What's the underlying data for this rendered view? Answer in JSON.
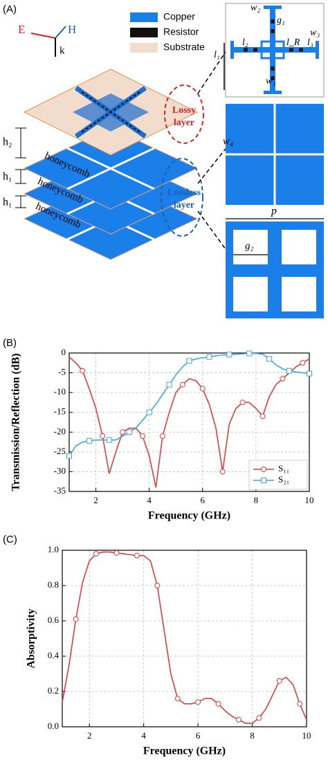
{
  "panel_labels": [
    "(A)",
    "(B)",
    "(C)"
  ],
  "diagram": {
    "legend": [
      "Copper",
      "Resistor",
      "Substrate"
    ],
    "field": {
      "e": "E",
      "h": "H",
      "k": "k"
    },
    "heights": [
      "h₂",
      "h₁",
      "h₁"
    ],
    "honeycomb": [
      "honeycomb",
      "honeycomb",
      "honeycomb"
    ],
    "lossy": [
      "Lossy",
      "layer"
    ],
    "lossless": [
      "Lossless",
      "layer"
    ],
    "unit_cell": {
      "w2": "w₂",
      "g1": "g₁",
      "w3": "w₃",
      "l1": "l₁",
      "l2": "l₂",
      "lR": "l_R",
      "l3": "l₃",
      "w1": "w₁"
    },
    "lossless_cell": {
      "w4": "w₄"
    },
    "honeycomb_cell": {
      "p": "p",
      "g2": "g₂"
    }
  },
  "chart_data": [
    {
      "type": "line",
      "xlabel": "Frequency (GHz)",
      "ylabel": "Transmission/Reflection (dB)",
      "x": [
        1,
        1.25,
        1.5,
        1.75,
        2,
        2.25,
        2.5,
        2.75,
        3,
        3.25,
        3.5,
        3.75,
        4,
        4.25,
        4.5,
        4.75,
        5,
        5.25,
        5.5,
        5.75,
        6,
        6.25,
        6.5,
        6.75,
        7,
        7.25,
        7.5,
        7.75,
        8,
        8.25,
        8.5,
        8.75,
        9,
        9.25,
        9.5,
        9.75,
        10
      ],
      "series": [
        {
          "name": "S₁₁",
          "color": "#e33b3b",
          "marker": "circle",
          "values": [
            -1,
            -2.5,
            -4.5,
            -9,
            -14,
            -21,
            -30.5,
            -25,
            -20,
            -19,
            -19,
            -21,
            -26,
            -34,
            -21,
            -15,
            -10,
            -8,
            -6.5,
            -7,
            -9,
            -13,
            -19,
            -30,
            -18,
            -14,
            -12.5,
            -12.5,
            -14,
            -16,
            -11,
            -8,
            -6.5,
            -5,
            -3.5,
            -2.5,
            -1.5
          ]
        },
        {
          "name": "S₂₁",
          "color": "#3aa8e0",
          "marker": "square",
          "values": [
            -26,
            -23.5,
            -22.5,
            -22.2,
            -22,
            -22,
            -22,
            -22,
            -21,
            -20,
            -19,
            -17,
            -15,
            -13,
            -10.5,
            -8,
            -5.5,
            -3.5,
            -2,
            -1.5,
            -1.2,
            -1,
            -0.7,
            -0.5,
            -0.4,
            -0.3,
            -0.2,
            -0.1,
            -0.1,
            -0.3,
            -1.5,
            -3,
            -4,
            -4.5,
            -4.8,
            -5,
            -5.2
          ]
        }
      ],
      "xlim": [
        1,
        10
      ],
      "xticks": [
        2,
        4,
        6,
        8,
        10
      ],
      "ylim": [
        -35,
        0
      ],
      "yticks": [
        -35,
        -30,
        -25,
        -20,
        -15,
        -10,
        -5,
        0
      ],
      "grid": true,
      "legend": "lower right"
    },
    {
      "type": "line",
      "xlabel": "Frequency (GHz)",
      "ylabel": "Absorptivity",
      "x": [
        1,
        1.25,
        1.5,
        1.75,
        2,
        2.25,
        2.5,
        2.75,
        3,
        3.25,
        3.5,
        3.75,
        4,
        4.25,
        4.5,
        4.75,
        5,
        5.25,
        5.5,
        5.75,
        6,
        6.25,
        6.5,
        6.75,
        7,
        7.25,
        7.5,
        7.75,
        8,
        8.25,
        8.5,
        8.75,
        9,
        9.25,
        9.5,
        9.75,
        10
      ],
      "series": [
        {
          "color": "#e33b3b",
          "marker": "circle",
          "values": [
            0.14,
            0.35,
            0.61,
            0.82,
            0.94,
            0.98,
            0.99,
            0.99,
            0.985,
            0.98,
            0.975,
            0.97,
            0.97,
            0.94,
            0.8,
            0.55,
            0.3,
            0.16,
            0.13,
            0.13,
            0.14,
            0.16,
            0.16,
            0.13,
            0.09,
            0.06,
            0.04,
            0.02,
            0.02,
            0.05,
            0.1,
            0.18,
            0.26,
            0.28,
            0.24,
            0.13,
            0.04
          ]
        }
      ],
      "xlim": [
        1,
        10
      ],
      "xticks": [
        2,
        4,
        6,
        8,
        10
      ],
      "ylim": [
        0,
        1
      ],
      "yticks": [
        {
          "value": 0,
          "label": "0.0"
        },
        0.2,
        0.4,
        0.6,
        0.8,
        {
          "value": 1,
          "label": "1.0"
        }
      ],
      "grid": true
    }
  ]
}
